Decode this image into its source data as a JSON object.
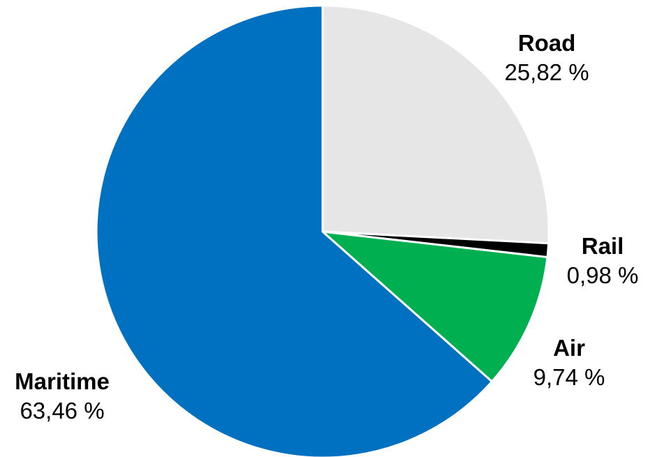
{
  "chart_data": {
    "type": "pie",
    "slices": [
      {
        "name": "Road",
        "value": 25.82,
        "label": "25,82 %",
        "color": "#e6e6e6"
      },
      {
        "name": "Rail",
        "value": 0.98,
        "label": "0,98 %",
        "color": "#000000"
      },
      {
        "name": "Air",
        "value": 9.74,
        "label": "9,74 %",
        "color": "#00b050"
      },
      {
        "name": "Maritime",
        "value": 63.46,
        "label": "63,46 %",
        "color": "#0070c0"
      }
    ],
    "start_angle_deg": 0,
    "direction": "clockwise",
    "legend": "none",
    "labels": "outside"
  }
}
